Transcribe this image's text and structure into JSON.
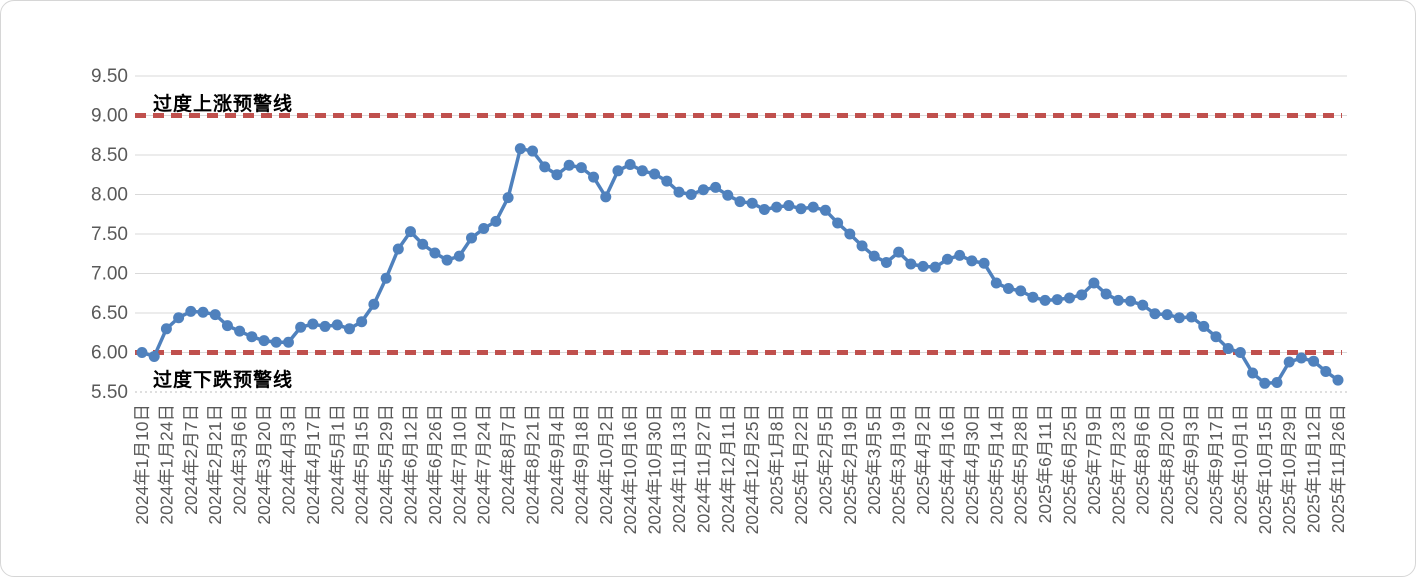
{
  "chart_data": {
    "type": "line",
    "title": "",
    "series_color": "#4f81bd",
    "marker": "circle",
    "grid": true,
    "ylim": [
      5.5,
      9.5
    ],
    "y_ticks": [
      "9.50",
      "9.00",
      "8.50",
      "8.00",
      "7.50",
      "7.00",
      "6.50",
      "6.00",
      "5.50"
    ],
    "label_every": 2,
    "x_labels": [
      "2024年1月10日",
      "2024年1月24日",
      "2024年2月7日",
      "2024年2月21日",
      "2024年3月6日",
      "2024年3月20日",
      "2024年4月3日",
      "2024年4月17日",
      "2024年5月1日",
      "2024年5月15日",
      "2024年5月29日",
      "2024年6月12日",
      "2024年6月26日",
      "2024年7月10日",
      "2024年7月24日",
      "2024年8月7日",
      "2024年8月21日",
      "2024年9月4日",
      "2024年9月18日",
      "2024年10月2日",
      "2024年10月16日",
      "2024年10月30日",
      "2024年11月13日",
      "2024年11月27日",
      "2024年12月11日",
      "2024年12月25日",
      "2025年1月8日",
      "2025年1月22日",
      "2025年2月5日",
      "2025年2月19日",
      "2025年3月5日",
      "2025年3月19日",
      "2025年4月2日",
      "2025年4月16日",
      "2025年4月30日",
      "2025年5月14日",
      "2025年5月28日",
      "2025年6月11日",
      "2025年6月25日",
      "2025年7月9日",
      "2025年7月23日",
      "2025年8月6日",
      "2025年8月20日",
      "2025年9月3日",
      "2025年9月17日",
      "2025年10月1日",
      "2025年10月15日",
      "2025年10月29日",
      "2025年11月12日",
      "2025年11月26日"
    ],
    "values": [
      6.0,
      5.95,
      6.3,
      6.44,
      6.52,
      6.51,
      6.48,
      6.34,
      6.27,
      6.2,
      6.15,
      6.13,
      6.13,
      6.32,
      6.36,
      6.33,
      6.35,
      6.3,
      6.39,
      6.61,
      6.94,
      7.31,
      7.53,
      7.37,
      7.26,
      7.17,
      7.22,
      7.45,
      7.57,
      7.66,
      7.96,
      8.58,
      8.55,
      8.35,
      8.25,
      8.37,
      8.34,
      8.22,
      7.97,
      8.3,
      8.38,
      8.3,
      8.26,
      8.17,
      8.03,
      8.0,
      8.06,
      8.09,
      7.99,
      7.91,
      7.89,
      7.81,
      7.84,
      7.86,
      7.82,
      7.84,
      7.8,
      7.64,
      7.5,
      7.35,
      7.22,
      7.14,
      7.27,
      7.12,
      7.09,
      7.08,
      7.18,
      7.23,
      7.16,
      7.13,
      6.88,
      6.81,
      6.78,
      6.7,
      6.66,
      6.67,
      6.69,
      6.73,
      6.88,
      6.74,
      6.66,
      6.65,
      6.6,
      6.49,
      6.48,
      6.44,
      6.45,
      6.33,
      6.2,
      6.05,
      6.0,
      5.74,
      5.61,
      5.62,
      5.88,
      5.93,
      5.89,
      5.76,
      5.65
    ],
    "thresholds": [
      {
        "label": "过度上涨预警线",
        "value": 9.0,
        "color": "#c0504d",
        "style": "dashed"
      },
      {
        "label": "过度下跌预警线",
        "value": 6.0,
        "color": "#c0504d",
        "style": "dashed"
      }
    ],
    "axis_text_color": "#595959",
    "gridline_color": "#d9d9d9"
  }
}
